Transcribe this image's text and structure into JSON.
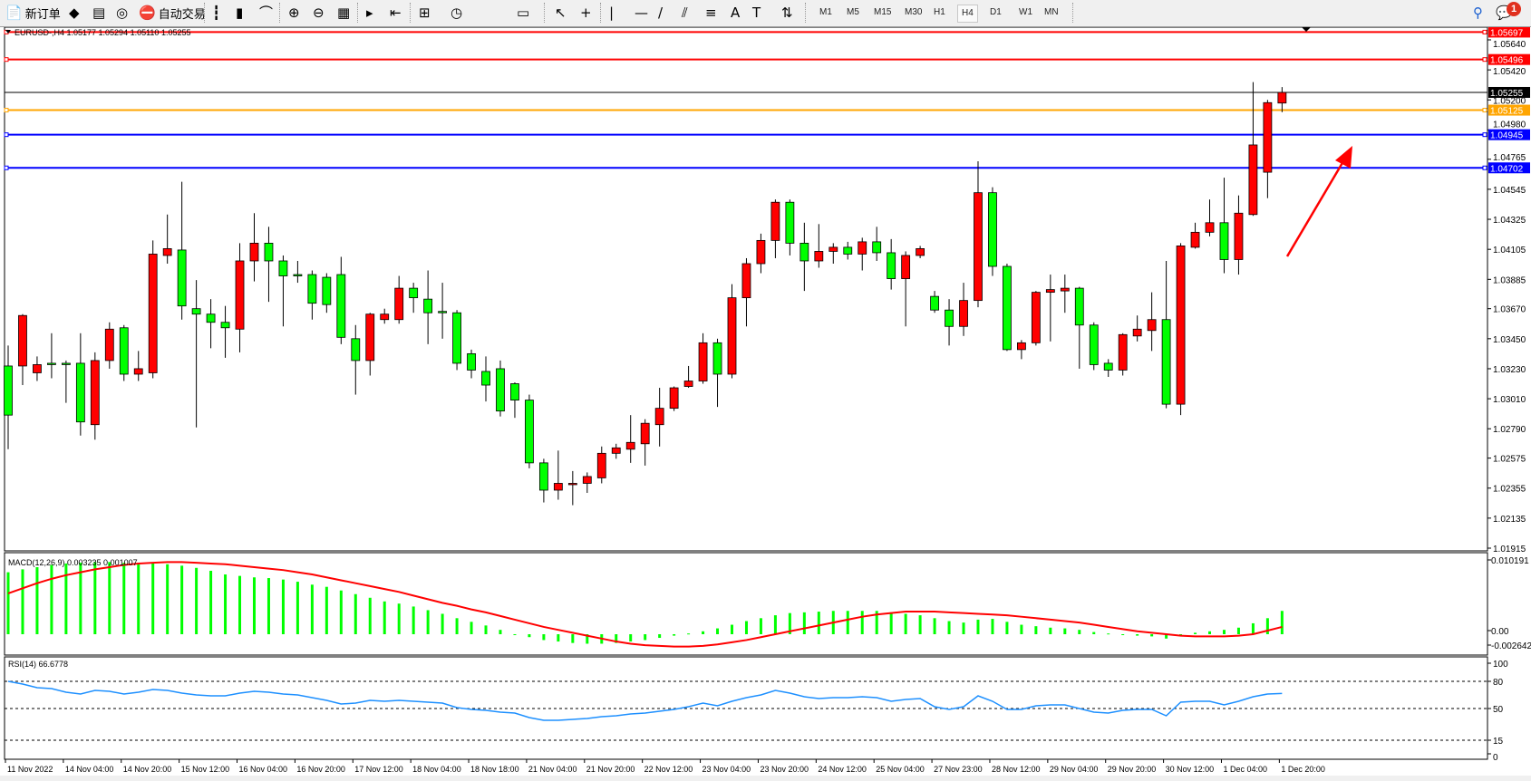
{
  "toolbar": {
    "new_order_label": "新订单",
    "auto_trading_label": "自动交易",
    "icons": [
      "new-order-icon",
      "market-watch-icon",
      "navigator-icon",
      "signals-icon",
      "auto-trading-icon",
      "bar-chart-icon",
      "candlestick-icon",
      "line-chart-icon",
      "zoom-in-icon",
      "zoom-out-icon",
      "tile-windows-icon",
      "auto-scroll-icon",
      "chart-shift-icon",
      "indicators-icon",
      "periods-icon",
      "templates-icon",
      "cursor-icon",
      "crosshair-icon",
      "vertical-line-icon",
      "horizontal-line-icon",
      "trendline-icon",
      "fibonacci-channel-icon",
      "fibonacci-retracement-icon",
      "text-icon",
      "text-label-icon",
      "arrows-icon",
      "search-icon",
      "notifications-icon"
    ],
    "timeframes": [
      "M1",
      "M5",
      "M15",
      "M30",
      "H1",
      "H4",
      "D1",
      "W1",
      "MN"
    ],
    "active_timeframe": "H4",
    "notification_count": "1"
  },
  "chart_header": "EURUSD-,H4  1.05177 1.05294 1.05110 1.05255",
  "colors": {
    "bull": "#ff0000",
    "bear": "#00ff00",
    "signal": "#ff0000",
    "rsi": "#1e90ff",
    "background": "#ffffff"
  },
  "chart_data": [
    {
      "type": "candlestick",
      "symbol": "EURUSD-",
      "timeframe": "H4",
      "ohlc_order": [
        "open",
        "high",
        "low",
        "close"
      ],
      "ylim": [
        1.0186,
        1.0575
      ],
      "y_ticks": [
        "1.05640",
        "1.05420",
        "1.05200",
        "1.04980",
        "1.04765",
        "1.04545",
        "1.04325",
        "1.04105",
        "1.03885",
        "1.03670",
        "1.03450",
        "1.03230",
        "1.03010",
        "1.02790",
        "1.02575",
        "1.02355",
        "1.02135",
        "1.01915"
      ],
      "x_tick_labels": [
        "11 Nov 2022",
        "14 Nov 04:00",
        "14 Nov 20:00",
        "15 Nov 12:00",
        "16 Nov 04:00",
        "16 Nov 20:00",
        "17 Nov 12:00",
        "18 Nov 04:00",
        "18 Nov 18:00",
        "21 Nov 04:00",
        "21 Nov 20:00",
        "22 Nov 12:00",
        "23 Nov 04:00",
        "23 Nov 20:00",
        "24 Nov 12:00",
        "25 Nov 04:00",
        "27 Nov 23:00",
        "28 Nov 12:00",
        "29 Nov 04:00",
        "29 Nov 20:00",
        "30 Nov 12:00",
        "1 Dec 04:00",
        "1 Dec 20:00"
      ],
      "x_tick_every_n_bars": 4,
      "candles": [
        [
          1.0325,
          1.034,
          1.0264,
          1.0289
        ],
        [
          1.0325,
          1.0363,
          1.0311,
          1.0362
        ],
        [
          1.032,
          1.0332,
          1.0314,
          1.0326
        ],
        [
          1.0327,
          1.0349,
          1.0316,
          1.0326
        ],
        [
          1.0327,
          1.0329,
          1.0298,
          1.0326
        ],
        [
          1.0327,
          1.0349,
          1.0274,
          1.0284
        ],
        [
          1.0282,
          1.0335,
          1.0271,
          1.0329
        ],
        [
          1.0329,
          1.0357,
          1.0323,
          1.0352
        ],
        [
          1.0353,
          1.0355,
          1.0314,
          1.0319
        ],
        [
          1.0319,
          1.0336,
          1.0314,
          1.0323
        ],
        [
          1.032,
          1.0417,
          1.0316,
          1.0407
        ],
        [
          1.0406,
          1.0436,
          1.04,
          1.0411
        ],
        [
          1.041,
          1.046,
          1.0359,
          1.0369
        ],
        [
          1.0367,
          1.0388,
          1.028,
          1.0363
        ],
        [
          1.0363,
          1.0374,
          1.0338,
          1.0357
        ],
        [
          1.0357,
          1.0369,
          1.0331,
          1.0353
        ],
        [
          1.0352,
          1.0415,
          1.0335,
          1.0402
        ],
        [
          1.0402,
          1.0437,
          1.0387,
          1.0415
        ],
        [
          1.0415,
          1.0427,
          1.0372,
          1.0402
        ],
        [
          1.0402,
          1.0406,
          1.0354,
          1.0391
        ],
        [
          1.0392,
          1.0402,
          1.0386,
          1.0391
        ],
        [
          1.0392,
          1.0395,
          1.0359,
          1.0371
        ],
        [
          1.039,
          1.0393,
          1.0364,
          1.037
        ],
        [
          1.0392,
          1.0405,
          1.0341,
          1.0346
        ],
        [
          1.0345,
          1.0355,
          1.0304,
          1.0329
        ],
        [
          1.0329,
          1.0364,
          1.0318,
          1.0363
        ],
        [
          1.0359,
          1.0367,
          1.0356,
          1.0363
        ],
        [
          1.0359,
          1.0391,
          1.0356,
          1.0382
        ],
        [
          1.0382,
          1.0386,
          1.0364,
          1.0375
        ],
        [
          1.0374,
          1.0395,
          1.0341,
          1.0364
        ],
        [
          1.0365,
          1.0386,
          1.0345,
          1.0364
        ],
        [
          1.0364,
          1.0366,
          1.0322,
          1.0327
        ],
        [
          1.0334,
          1.0337,
          1.0316,
          1.0322
        ],
        [
          1.0321,
          1.0332,
          1.0299,
          1.0311
        ],
        [
          1.0323,
          1.0329,
          1.0288,
          1.0292
        ],
        [
          1.0312,
          1.0313,
          1.0287,
          1.03
        ],
        [
          1.03,
          1.0304,
          1.025,
          1.0254
        ],
        [
          1.0254,
          1.0257,
          1.0225,
          1.0234
        ],
        [
          1.0234,
          1.0263,
          1.0227,
          1.0239
        ],
        [
          1.0238,
          1.0248,
          1.0223,
          1.0239
        ],
        [
          1.0239,
          1.0247,
          1.0232,
          1.0244
        ],
        [
          1.0243,
          1.0266,
          1.0239,
          1.0261
        ],
        [
          1.0261,
          1.0268,
          1.0257,
          1.0265
        ],
        [
          1.0264,
          1.0289,
          1.0254,
          1.0269
        ],
        [
          1.0268,
          1.0286,
          1.0252,
          1.0283
        ],
        [
          1.0282,
          1.0309,
          1.0266,
          1.0294
        ],
        [
          1.0294,
          1.031,
          1.0292,
          1.0309
        ],
        [
          1.031,
          1.0325,
          1.0309,
          1.0314
        ],
        [
          1.0314,
          1.0349,
          1.0312,
          1.0342
        ],
        [
          1.0342,
          1.0345,
          1.0295,
          1.0319
        ],
        [
          1.0319,
          1.0385,
          1.0316,
          1.0375
        ],
        [
          1.0375,
          1.0404,
          1.0354,
          1.04
        ],
        [
          1.04,
          1.0422,
          1.0393,
          1.0417
        ],
        [
          1.0417,
          1.0447,
          1.0404,
          1.0445
        ],
        [
          1.0445,
          1.0447,
          1.0406,
          1.0415
        ],
        [
          1.0415,
          1.043,
          1.038,
          1.0402
        ],
        [
          1.0402,
          1.0429,
          1.0397,
          1.0409
        ],
        [
          1.0409,
          1.0415,
          1.04,
          1.0412
        ],
        [
          1.0412,
          1.0416,
          1.0403,
          1.0407
        ],
        [
          1.0407,
          1.0419,
          1.0395,
          1.0416
        ],
        [
          1.0416,
          1.0427,
          1.0402,
          1.0408
        ],
        [
          1.0408,
          1.0418,
          1.0381,
          1.0389
        ],
        [
          1.0389,
          1.0409,
          1.0354,
          1.0406
        ],
        [
          1.0406,
          1.0413,
          1.0404,
          1.0411
        ],
        [
          1.0376,
          1.038,
          1.0364,
          1.0366
        ],
        [
          1.0366,
          1.0374,
          1.034,
          1.0354
        ],
        [
          1.0354,
          1.0386,
          1.0347,
          1.0373
        ],
        [
          1.0373,
          1.0475,
          1.0368,
          1.0452
        ],
        [
          1.0452,
          1.0456,
          1.0391,
          1.0398
        ],
        [
          1.0398,
          1.04,
          1.0336,
          1.0337
        ],
        [
          1.0337,
          1.0344,
          1.033,
          1.0342
        ],
        [
          1.0342,
          1.038,
          1.034,
          1.0379
        ],
        [
          1.0379,
          1.0392,
          1.0343,
          1.0381
        ],
        [
          1.038,
          1.0392,
          1.0364,
          1.0382
        ],
        [
          1.0382,
          1.0383,
          1.0323,
          1.0355
        ],
        [
          1.0355,
          1.0357,
          1.0322,
          1.0326
        ],
        [
          1.0327,
          1.033,
          1.0317,
          1.0322
        ],
        [
          1.0322,
          1.0349,
          1.0318,
          1.0348
        ],
        [
          1.0347,
          1.0362,
          1.0343,
          1.0352
        ],
        [
          1.0351,
          1.0379,
          1.0336,
          1.0359
        ],
        [
          1.0359,
          1.0402,
          1.0294,
          1.0297
        ],
        [
          1.0297,
          1.0415,
          1.0289,
          1.0413
        ],
        [
          1.0412,
          1.043,
          1.0411,
          1.0423
        ],
        [
          1.0423,
          1.0447,
          1.042,
          1.043
        ],
        [
          1.043,
          1.0463,
          1.0393,
          1.0403
        ],
        [
          1.0403,
          1.045,
          1.0392,
          1.0437
        ],
        [
          1.0436,
          1.0533,
          1.0435,
          1.0487
        ],
        [
          1.0467,
          1.052,
          1.0448,
          1.0518
        ],
        [
          1.05177,
          1.05294,
          1.0511,
          1.05255
        ]
      ],
      "price_lines": [
        {
          "value": "1.05697",
          "color": "#ff0000"
        },
        {
          "value": "1.05496",
          "color": "#ff0000"
        },
        {
          "value": "1.05125",
          "color": "#ffa500"
        },
        {
          "value": "1.04945",
          "color": "#0000ff"
        },
        {
          "value": "1.04702",
          "color": "#0000ff"
        }
      ],
      "bid_line": {
        "value": "1.05255",
        "color": "#000000"
      },
      "arrow_annotation": {
        "color": "#ff0000",
        "direction": "up"
      }
    },
    {
      "type": "bar+line",
      "label": "MACD(12,26,9) 0.003235 0.001007",
      "y_ticks": [
        "0.010191",
        "0.00",
        "-0.002642"
      ],
      "ylim": [
        -0.002642,
        0.010191
      ],
      "histogram": [
        0.0085,
        0.0089,
        0.0092,
        0.0095,
        0.0097,
        0.0098,
        0.0099,
        0.0099,
        0.0098,
        0.0098,
        0.0097,
        0.0096,
        0.0094,
        0.0091,
        0.0087,
        0.0082,
        0.008,
        0.0078,
        0.0077,
        0.0075,
        0.0072,
        0.0068,
        0.0065,
        0.006,
        0.0055,
        0.005,
        0.0045,
        0.0042,
        0.0038,
        0.0033,
        0.0028,
        0.0022,
        0.0017,
        0.0012,
        0.0006,
        0.0,
        -0.0004,
        -0.0008,
        -0.001,
        -0.0012,
        -0.0013,
        -0.0013,
        -0.0012,
        -0.001,
        -0.0008,
        -0.0005,
        -0.0002,
        0.0001,
        0.0004,
        0.0008,
        0.0013,
        0.0018,
        0.0022,
        0.0026,
        0.0029,
        0.003,
        0.0031,
        0.0032,
        0.0032,
        0.0032,
        0.0032,
        0.003,
        0.0028,
        0.0026,
        0.0022,
        0.0018,
        0.0016,
        0.002,
        0.0021,
        0.0017,
        0.0013,
        0.0011,
        0.0009,
        0.0008,
        0.0006,
        0.0003,
        0.0001,
        -0.0001,
        -0.0002,
        -0.0003,
        -0.0006,
        -0.0001,
        0.0002,
        0.0004,
        0.0006,
        0.0009,
        0.0015,
        0.0022,
        0.0032
      ],
      "signal": [
        0.0056,
        0.0063,
        0.007,
        0.0076,
        0.0081,
        0.0085,
        0.0089,
        0.0092,
        0.0095,
        0.0097,
        0.0098,
        0.0099,
        0.0099,
        0.0098,
        0.0097,
        0.0096,
        0.0094,
        0.0092,
        0.009,
        0.0088,
        0.0085,
        0.0082,
        0.0078,
        0.0074,
        0.007,
        0.0066,
        0.0062,
        0.0058,
        0.0053,
        0.0048,
        0.0043,
        0.0039,
        0.0034,
        0.003,
        0.0025,
        0.002,
        0.0015,
        0.001,
        0.0006,
        0.0002,
        -0.0002,
        -0.0006,
        -0.001,
        -0.0013,
        -0.0015,
        -0.0016,
        -0.0017,
        -0.0017,
        -0.0016,
        -0.0014,
        -0.0011,
        -0.0008,
        -0.0004,
        0.0,
        0.0004,
        0.0008,
        0.0012,
        0.0016,
        0.002,
        0.0024,
        0.0027,
        0.0029,
        0.0031,
        0.0031,
        0.0031,
        0.003,
        0.0029,
        0.0028,
        0.0027,
        0.0026,
        0.0024,
        0.0022,
        0.002,
        0.0018,
        0.0016,
        0.0013,
        0.001,
        0.0007,
        0.0004,
        0.0002,
        0.0,
        -0.0002,
        -0.0003,
        -0.0003,
        -0.0003,
        -0.0002,
        0.0,
        0.0005,
        0.001
      ]
    },
    {
      "type": "line",
      "label": "RSI(14) 66.6778",
      "ylim": [
        0,
        100
      ],
      "y_ticks": [
        "100",
        "80",
        "50",
        "15",
        "0"
      ],
      "levels": [
        80,
        50,
        15
      ],
      "values": [
        80,
        77,
        73,
        72,
        68,
        66,
        70,
        69,
        66,
        68,
        71,
        70,
        67,
        65,
        64,
        64,
        67,
        69,
        68,
        66,
        65,
        62,
        59,
        55,
        56,
        59,
        58,
        59,
        58,
        57,
        56,
        51,
        49,
        48,
        46,
        45,
        40,
        37,
        37,
        38,
        39,
        41,
        42,
        44,
        45,
        47,
        49,
        52,
        56,
        53,
        58,
        62,
        65,
        70,
        67,
        63,
        61,
        62,
        62,
        63,
        62,
        58,
        60,
        61,
        52,
        49,
        52,
        64,
        58,
        49,
        49,
        53,
        54,
        54,
        50,
        46,
        45,
        48,
        49,
        49,
        42,
        57,
        58,
        58,
        54,
        58,
        63,
        66,
        66.68
      ]
    }
  ]
}
